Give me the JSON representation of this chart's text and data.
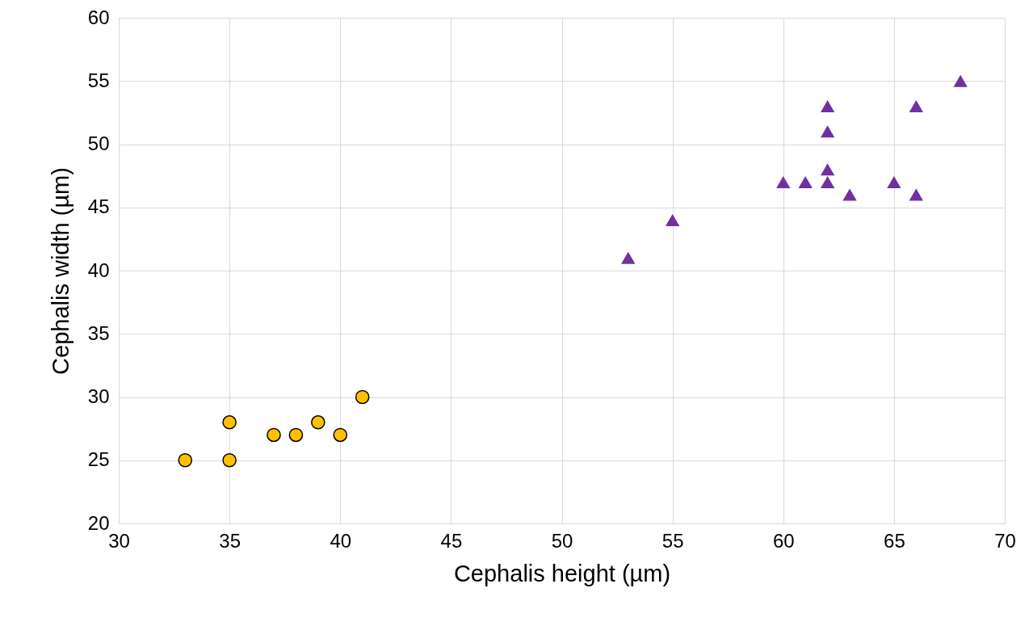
{
  "chart_data": {
    "type": "scatter",
    "xlabel": "Cephalis height (µm)",
    "ylabel": "Cephalis width (µm)",
    "xlim": [
      30,
      70
    ],
    "ylim": [
      20,
      60
    ],
    "xticks": [
      30,
      35,
      40,
      45,
      50,
      55,
      60,
      65,
      70
    ],
    "yticks": [
      20,
      25,
      30,
      35,
      40,
      45,
      50,
      55,
      60
    ],
    "grid": true,
    "series": [
      {
        "color": "#ffc000",
        "marker": "circle",
        "x": [
          33,
          35,
          35,
          37,
          38,
          39,
          40,
          41
        ],
        "values": [
          25,
          28,
          25,
          27,
          27,
          28,
          27,
          30
        ]
      },
      {
        "color": "#7030a0",
        "marker": "triangle",
        "x": [
          53,
          55,
          60,
          61,
          62,
          62,
          62,
          62,
          63,
          65,
          66,
          66,
          68
        ],
        "values": [
          41,
          44,
          47,
          47,
          53,
          51,
          48,
          47,
          46,
          47,
          53,
          46,
          55
        ]
      }
    ]
  }
}
